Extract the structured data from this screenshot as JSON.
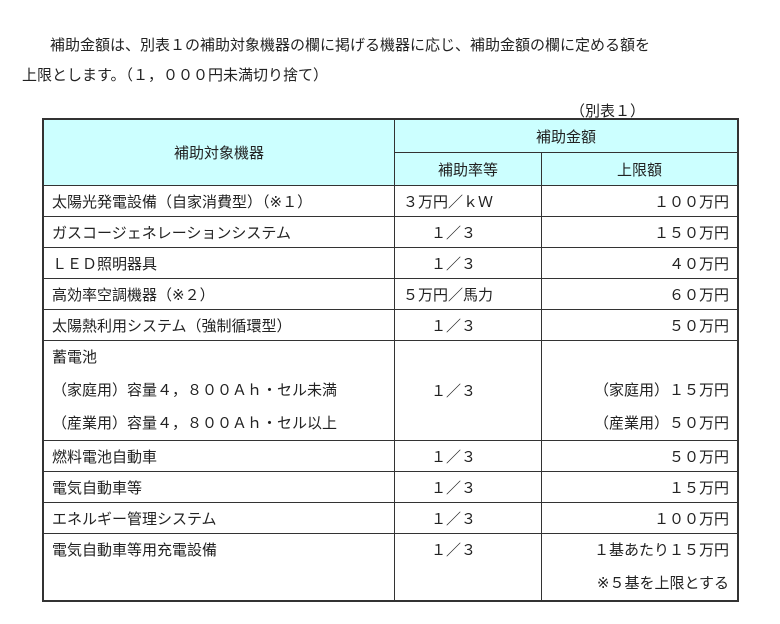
{
  "intro": {
    "line1": "補助金額は、別表１の補助対象機器の欄に掲げる機器に応じ、補助金額の欄に定める額を",
    "line2": "上限とします。（１，０００円未満切り捨て）"
  },
  "table_caption": "（別表１）",
  "header": {
    "equipment": "補助対象機器",
    "amount": "補助金額",
    "rate": "補助率等",
    "limit": "上限額"
  },
  "rows": [
    {
      "equipment": "太陽光発電設備（自家消費型）（※１）",
      "rate": "３万円／ｋＷ",
      "limit": "１００万円"
    },
    {
      "equipment": "ガスコージェネレーションシステム",
      "rate": "１／３",
      "limit": "１５０万円"
    },
    {
      "equipment": "ＬＥＤ照明器具",
      "rate": "１／３",
      "limit": "４０万円"
    },
    {
      "equipment": "高効率空調機器（※２）",
      "rate": "５万円／馬力",
      "limit": "６０万円"
    },
    {
      "equipment": "太陽熱利用システム（強制循環型）",
      "rate": "１／３",
      "limit": "５０万円"
    }
  ],
  "battery": {
    "equipment": "蓄電池",
    "home": "（家庭用）容量４，８００Ａｈ・セル未満",
    "industrial": "（産業用）容量４，８００Ａｈ・セル以上",
    "rate": "１／３",
    "limit_home": "（家庭用）１５万円",
    "limit_industrial": "（産業用）５０万円"
  },
  "rows2": [
    {
      "equipment": "燃料電池自動車",
      "rate": "１／３",
      "limit": "５０万円"
    },
    {
      "equipment": "電気自動車等",
      "rate": "１／３",
      "limit": "１５万円"
    },
    {
      "equipment": "エネルギー管理システム",
      "rate": "１／３",
      "limit": "１００万円"
    }
  ],
  "charger": {
    "equipment": "電気自動車等用充電設備",
    "rate": "１／３",
    "limit1": "１基あたり１５万円",
    "limit2": "※５基を上限とする"
  },
  "colors": {
    "header_bg": "#ccffff",
    "border": "#333333"
  }
}
